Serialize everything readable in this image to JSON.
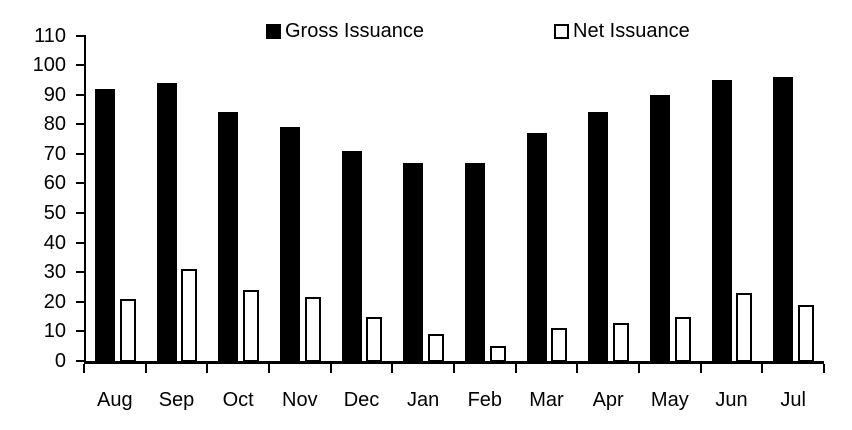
{
  "chart_data": {
    "type": "bar",
    "title": "",
    "xlabel": "",
    "ylabel": "",
    "categories": [
      "Aug",
      "Sep",
      "Oct",
      "Nov",
      "Dec",
      "Jan",
      "Feb",
      "Mar",
      "Apr",
      "May",
      "Jun",
      "Jul"
    ],
    "series": [
      {
        "name": "Gross Issuance",
        "fill": "#000000",
        "border": "#000000",
        "values": [
          92,
          94,
          84,
          79,
          71,
          67,
          67,
          77,
          84,
          90,
          95,
          96
        ]
      },
      {
        "name": "Net Issuance",
        "fill": "#ffffff",
        "border": "#000000",
        "values": [
          21,
          31,
          24,
          21.5,
          15,
          9,
          5,
          11,
          13,
          15,
          23,
          19
        ]
      }
    ],
    "ylim": [
      0,
      110
    ],
    "ytick_step": 10,
    "legend_position": "top",
    "grid": false,
    "axis_color": "#000000",
    "text_color": "#000000",
    "background_color": "#ffffff"
  }
}
